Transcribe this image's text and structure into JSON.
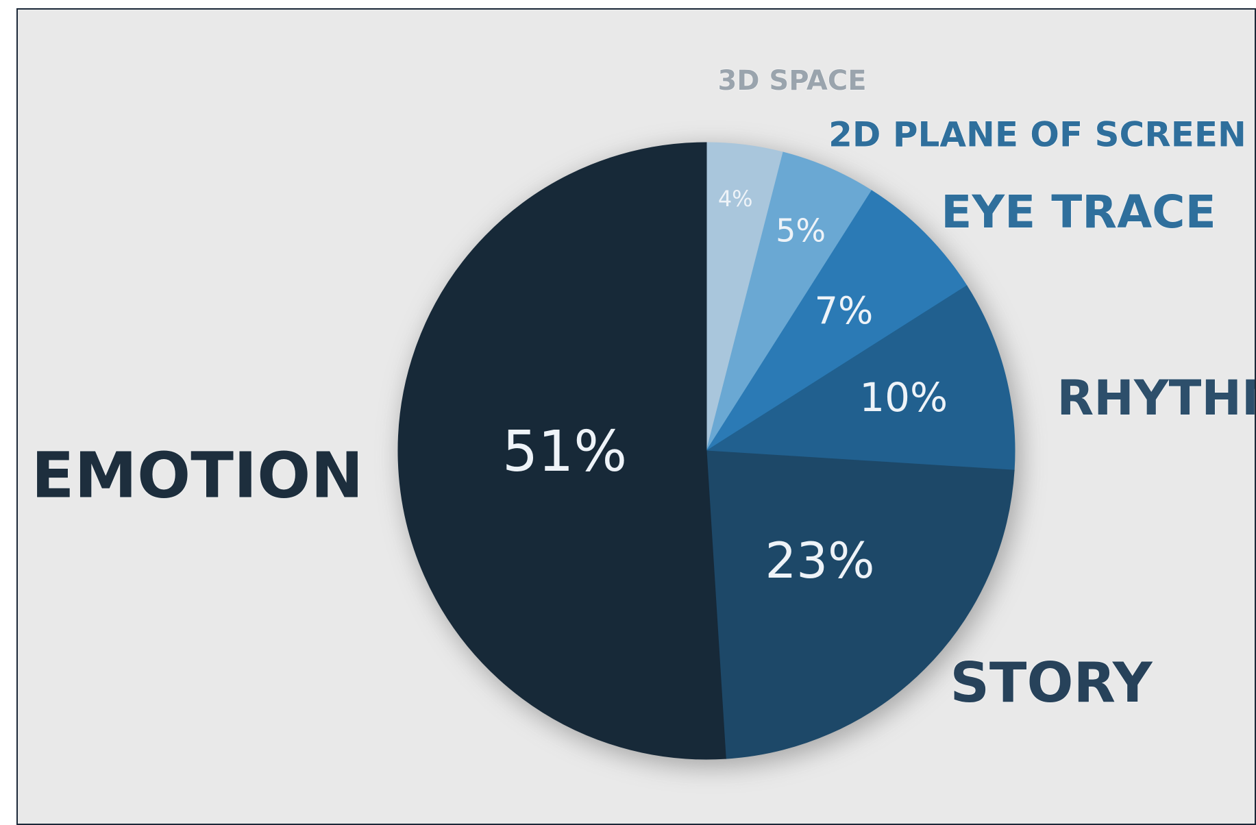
{
  "chart_data": {
    "type": "pie",
    "title": "",
    "start_angle_deg": 0,
    "direction": "clockwise",
    "slices": [
      {
        "label": "3D SPACE",
        "value": 4,
        "value_label": "4%",
        "color": "#a9c6dc"
      },
      {
        "label": "2D PLANE OF SCREEN",
        "value": 5,
        "value_label": "5%",
        "color": "#6aa8d3"
      },
      {
        "label": "EYE TRACE",
        "value": 7,
        "value_label": "7%",
        "color": "#2b7ab5"
      },
      {
        "label": "RHYTHM",
        "value": 10,
        "value_label": "10%",
        "color": "#21608f"
      },
      {
        "label": "STORY",
        "value": 23,
        "value_label": "23%",
        "color": "#1d4868"
      },
      {
        "label": "EMOTION",
        "value": 51,
        "value_label": "51%",
        "color": "#172938"
      }
    ],
    "label_colors": {
      "3D SPACE": "#9aa4ad",
      "2D PLANE OF SCREEN": "#2f6f9c",
      "EYE TRACE": "#2f6f9c",
      "RHYTHM": "#2d4f6b",
      "STORY": "#27425a",
      "EMOTION": "#1d2e3d"
    },
    "background_color": "#e9e9e9",
    "legend": "none",
    "grid": false
  }
}
